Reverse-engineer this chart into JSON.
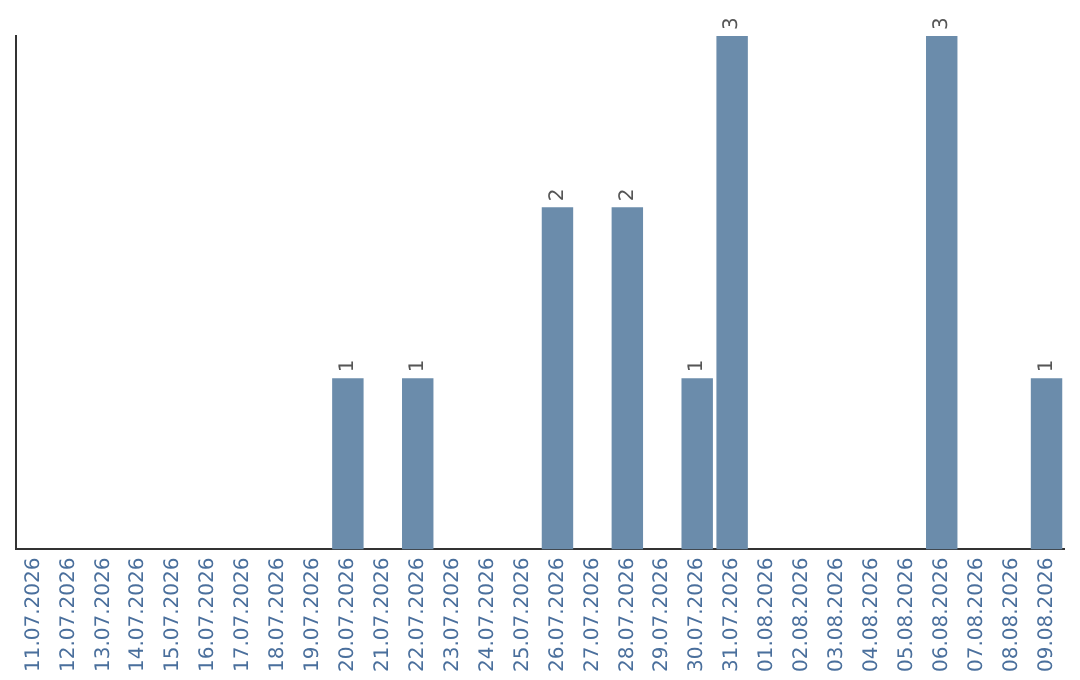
{
  "chart_data": {
    "type": "bar",
    "categories": [
      "11.07.2026",
      "12.07.2026",
      "13.07.2026",
      "14.07.2026",
      "15.07.2026",
      "16.07.2026",
      "17.07.2026",
      "18.07.2026",
      "19.07.2026",
      "20.07.2026",
      "21.07.2026",
      "22.07.2026",
      "23.07.2026",
      "24.07.2026",
      "25.07.2026",
      "26.07.2026",
      "27.07.2026",
      "28.07.2026",
      "29.07.2026",
      "30.07.2026",
      "31.07.2026",
      "01.08.2026",
      "02.08.2026",
      "03.08.2026",
      "04.08.2026",
      "05.08.2026",
      "06.08.2026",
      "07.08.2026",
      "08.08.2026",
      "09.08.2026"
    ],
    "values": [
      0,
      0,
      0,
      0,
      0,
      0,
      0,
      0,
      0,
      1,
      0,
      1,
      0,
      0,
      0,
      2,
      0,
      2,
      0,
      1,
      3,
      0,
      0,
      0,
      0,
      0,
      3,
      0,
      0,
      1
    ],
    "value_labels": [
      null,
      null,
      null,
      null,
      null,
      null,
      null,
      null,
      null,
      "1",
      null,
      "1",
      null,
      null,
      null,
      "2",
      null,
      "2",
      null,
      "1",
      "3",
      null,
      null,
      null,
      null,
      null,
      "3",
      null,
      null,
      "1"
    ],
    "color": "#6b8cab",
    "ylim": [
      0,
      3
    ],
    "grid": false,
    "legend": false,
    "tick_labels": "x"
  }
}
